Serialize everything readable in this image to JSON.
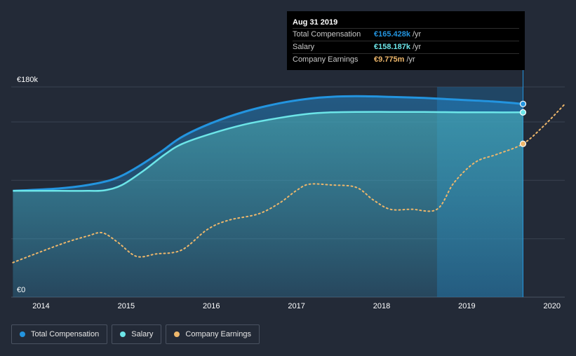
{
  "colors": {
    "background": "#232a37",
    "total_compensation": "#2394df",
    "salary": "#6ce5e8",
    "company_earnings": "#eeb76b"
  },
  "tooltip": {
    "date": "Aug 31 2019",
    "rows": [
      {
        "label": "Total Compensation",
        "value": "€165.428k",
        "unit": "/yr",
        "color": "#2394df"
      },
      {
        "label": "Salary",
        "value": "€158.187k",
        "unit": "/yr",
        "color": "#6ce5e8"
      },
      {
        "label": "Company Earnings",
        "value": "€9.775m",
        "unit": "/yr",
        "color": "#eeb76b"
      }
    ]
  },
  "legend": [
    {
      "label": "Total Compensation",
      "icon": "dot",
      "color": "#2394df"
    },
    {
      "label": "Salary",
      "icon": "dot",
      "color": "#6ce5e8"
    },
    {
      "label": "Company Earnings",
      "icon": "dot",
      "color": "#eeb76b"
    }
  ],
  "chart_data": {
    "type": "area",
    "xlim": [
      2013.65,
      2020.15
    ],
    "ylim": [
      0,
      180
    ],
    "y_unit": "k EUR",
    "y_tick_labels": [
      {
        "value": 180,
        "label": "€180k"
      },
      {
        "value": 0,
        "label": "€0"
      }
    ],
    "x_tick_labels": [
      "2014",
      "2015",
      "2016",
      "2017",
      "2018",
      "2019",
      "2020"
    ],
    "x_ticks": [
      2014,
      2015,
      2016,
      2017,
      2018,
      2019,
      2020
    ],
    "grid": true,
    "legend_position": "bottom-left",
    "highlight_from": 2018.65,
    "series": [
      {
        "name": "Total Compensation",
        "x": [
          2013.67,
          2014.2,
          2014.55,
          2014.85,
          2015.1,
          2015.4,
          2015.65,
          2016.0,
          2016.4,
          2016.8,
          2017.15,
          2017.4,
          2017.7,
          2018.1,
          2018.5,
          2018.9,
          2019.3,
          2019.66
        ],
        "values": [
          91,
          93,
          96,
          101,
          110,
          124,
          137,
          149,
          159,
          166,
          170,
          171.5,
          172,
          171.5,
          170.5,
          169,
          167.5,
          165.4
        ]
      },
      {
        "name": "Salary",
        "x": [
          2013.67,
          2014.2,
          2014.55,
          2014.75,
          2014.95,
          2015.2,
          2015.45,
          2015.65,
          2016.0,
          2016.4,
          2016.8,
          2017.15,
          2017.4,
          2017.7,
          2018.1,
          2018.5,
          2018.9,
          2019.3,
          2019.66
        ],
        "values": [
          91,
          91,
          91,
          91.5,
          96,
          108,
          122,
          131,
          140,
          148,
          153.5,
          157,
          158.2,
          158.6,
          158.6,
          158.5,
          158.3,
          158.2,
          158.2
        ]
      },
      {
        "name": "Company Earnings",
        "unit": "m EUR",
        "ylim": [
          0,
          13.4
        ],
        "x": [
          2013.67,
          2014.0,
          2014.3,
          2014.55,
          2014.72,
          2014.9,
          2015.12,
          2015.35,
          2015.65,
          2015.95,
          2016.2,
          2016.55,
          2016.8,
          2017.0,
          2017.15,
          2017.4,
          2017.7,
          2017.9,
          2018.1,
          2018.35,
          2018.65,
          2018.85,
          2019.1,
          2019.35,
          2019.66,
          2019.9,
          2020.15
        ],
        "values": [
          2.2,
          2.9,
          3.5,
          3.9,
          4.1,
          3.5,
          2.6,
          2.75,
          3.0,
          4.3,
          4.9,
          5.3,
          6.0,
          6.8,
          7.2,
          7.15,
          7.0,
          6.2,
          5.6,
          5.6,
          5.6,
          7.3,
          8.6,
          9.1,
          9.775,
          10.9,
          12.3
        ]
      }
    ],
    "markers": [
      {
        "series": "Total Compensation",
        "x": 2019.66,
        "value": 165.428
      },
      {
        "series": "Salary",
        "x": 2019.66,
        "value": 158.187
      },
      {
        "series": "Company Earnings",
        "x": 2019.66,
        "value": 9.775
      }
    ]
  }
}
